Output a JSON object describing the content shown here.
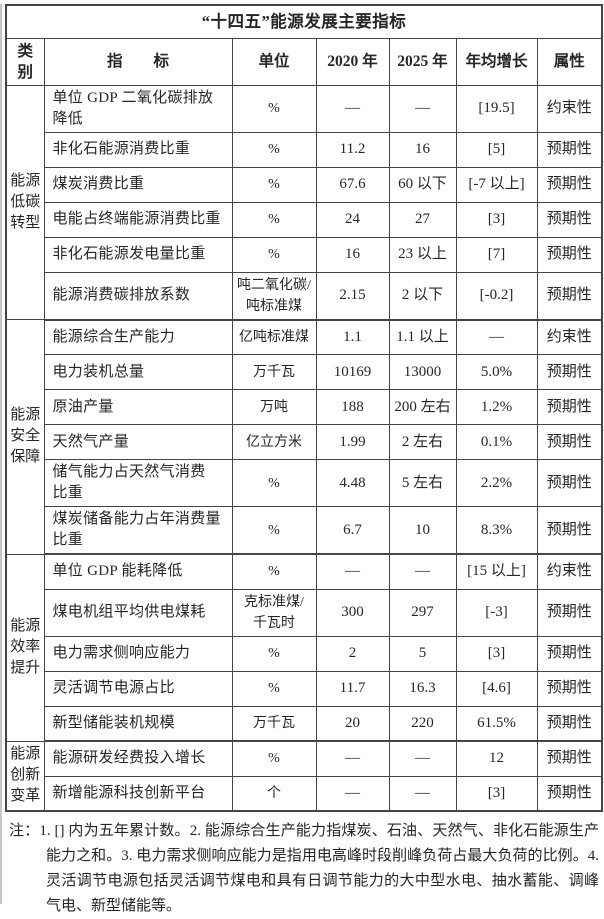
{
  "page": {
    "title": "“十四五”能源发展主要指标"
  },
  "columns": [
    "类别",
    "指　　标",
    "单位",
    "2020 年",
    "2025 年",
    "年均增长",
    "属性"
  ],
  "groups": [
    {
      "category": "能源低碳转型",
      "rows": [
        {
          "indicator": "单位 GDP 二氧化碳排放\n降低",
          "unit": "%",
          "y2020": "—",
          "y2025": "—",
          "growth": "[19.5]",
          "attr": "约束性"
        },
        {
          "indicator": "非化石能源消费比重",
          "unit": "%",
          "y2020": "11.2",
          "y2025": "16",
          "growth": "[5]",
          "attr": "预期性"
        },
        {
          "indicator": "煤炭消费比重",
          "unit": "%",
          "y2020": "67.6",
          "y2025": "60 以下",
          "growth": "[-7 以上]",
          "attr": "预期性"
        },
        {
          "indicator": "电能占终端能源消费比重",
          "unit": "%",
          "y2020": "24",
          "y2025": "27",
          "growth": "[3]",
          "attr": "预期性"
        },
        {
          "indicator": "非化石能源发电量比重",
          "unit": "%",
          "y2020": "16",
          "y2025": "23 以上",
          "growth": "[7]",
          "attr": "预期性"
        },
        {
          "indicator": "能源消费碳排放系数",
          "unit": "吨二氧化碳/\n吨标准煤",
          "y2020": "2.15",
          "y2025": "2 以下",
          "growth": "[-0.2]",
          "attr": "预期性"
        }
      ]
    },
    {
      "category": "能源安全保障",
      "rows": [
        {
          "indicator": "能源综合生产能力",
          "unit": "亿吨标准煤",
          "y2020": "1.1",
          "y2025": "1.1 以上",
          "growth": "—",
          "attr": "约束性"
        },
        {
          "indicator": "电力装机总量",
          "unit": "万千瓦",
          "y2020": "10169",
          "y2025": "13000",
          "growth": "5.0%",
          "attr": "预期性"
        },
        {
          "indicator": "原油产量",
          "unit": "万吨",
          "y2020": "188",
          "y2025": "200 左右",
          "growth": "1.2%",
          "attr": "预期性"
        },
        {
          "indicator": "天然气产量",
          "unit": "亿立方米",
          "y2020": "1.99",
          "y2025": "2 左右",
          "growth": "0.1%",
          "attr": "预期性"
        },
        {
          "indicator": "储气能力占天然气消费\n比重",
          "unit": "%",
          "y2020": "4.48",
          "y2025": "5 左右",
          "growth": "2.2%",
          "attr": "预期性"
        },
        {
          "indicator": "煤炭储备能力占年消费量\n比重",
          "unit": "%",
          "y2020": "6.7",
          "y2025": "10",
          "growth": "8.3%",
          "attr": "预期性"
        }
      ]
    },
    {
      "category": "能源效率提升",
      "rows": [
        {
          "indicator": "单位 GDP 能耗降低",
          "unit": "%",
          "y2020": "—",
          "y2025": "—",
          "growth": "[15 以上]",
          "attr": "约束性"
        },
        {
          "indicator": "煤电机组平均供电煤耗",
          "unit": "克标准煤/\n千瓦时",
          "y2020": "300",
          "y2025": "297",
          "growth": "[-3]",
          "attr": "预期性"
        },
        {
          "indicator": "电力需求侧响应能力",
          "unit": "%",
          "y2020": "2",
          "y2025": "5",
          "growth": "[3]",
          "attr": "预期性"
        },
        {
          "indicator": "灵活调节电源占比",
          "unit": "%",
          "y2020": "11.7",
          "y2025": "16.3",
          "growth": "[4.6]",
          "attr": "预期性"
        },
        {
          "indicator": "新型储能装机规模",
          "unit": "万千瓦",
          "y2020": "20",
          "y2025": "220",
          "growth": "61.5%",
          "attr": "预期性"
        }
      ]
    },
    {
      "category": "能源创新变革",
      "rows": [
        {
          "indicator": "能源研发经费投入增长",
          "unit": "%",
          "y2020": "—",
          "y2025": "—",
          "growth": "12",
          "attr": "预期性"
        },
        {
          "indicator": "新增能源科技创新平台",
          "unit": "个",
          "y2020": "—",
          "y2025": "—",
          "growth": "[3]",
          "attr": "预期性"
        }
      ]
    }
  ],
  "note": "注：1. [] 内为五年累计数。2. 能源综合生产能力指煤炭、石油、天然气、非化石能源生产能力之和。3. 电力需求侧响应能力是指用电高峰时段削峰负荷占最大负荷的比例。4. 灵活调节电源包括灵活调节煤电和具有日调节能力的大中型水电、抽水蓄能、调峰气电、新型储能等。",
  "colors": {
    "border": "#454545",
    "text": "#262626",
    "background": "#ffffff"
  }
}
